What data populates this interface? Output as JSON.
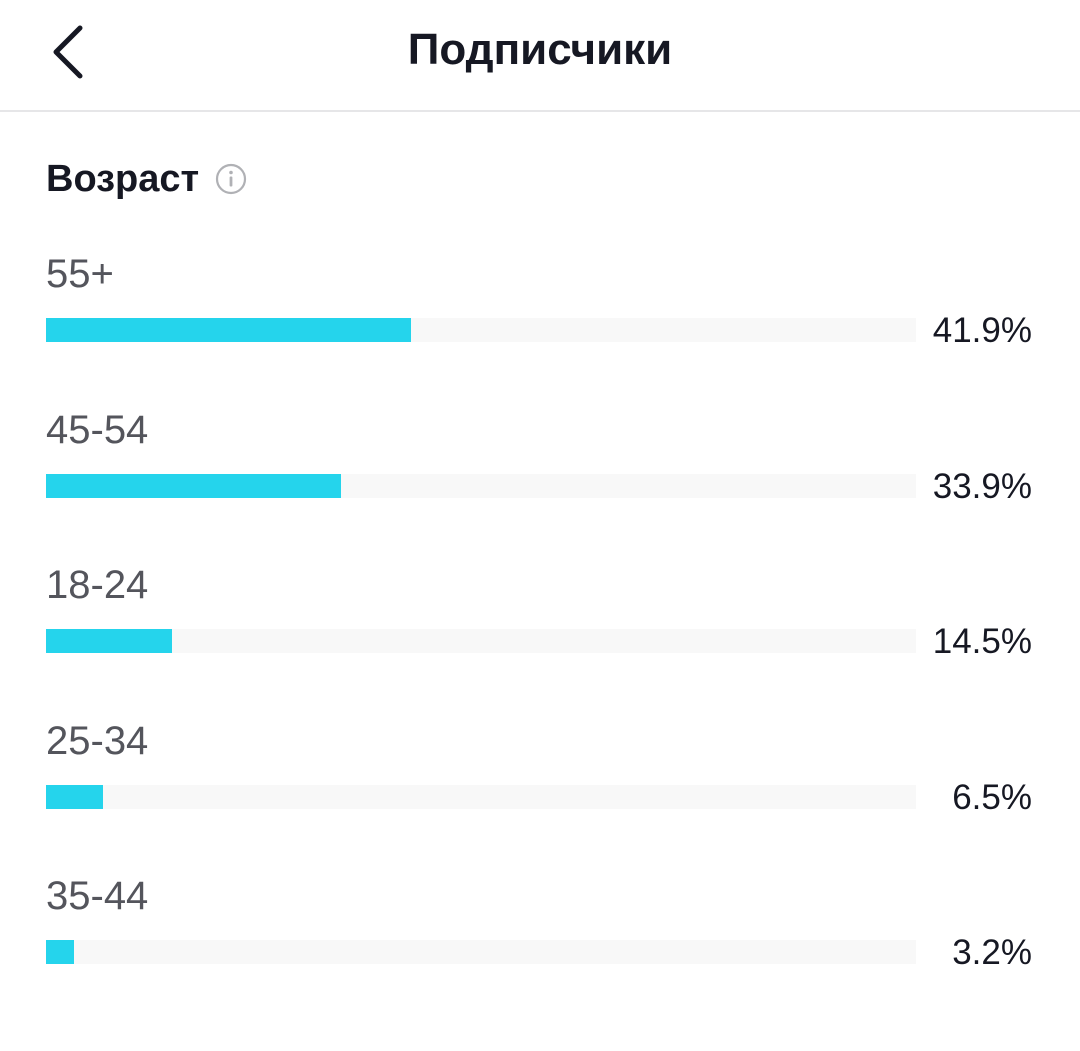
{
  "header": {
    "title": "Подписчики",
    "back_icon": "chevron-left-icon"
  },
  "section": {
    "title": "Возраст",
    "info_icon": "info-icon"
  },
  "accent_color": "#25d4ec",
  "track_color": "#f8f8f8",
  "age_groups": [
    {
      "label": "55+",
      "percent_text": "41.9%",
      "value": 41.9
    },
    {
      "label": "45-54",
      "percent_text": "33.9%",
      "value": 33.9
    },
    {
      "label": "18-24",
      "percent_text": "14.5%",
      "value": 14.5
    },
    {
      "label": "25-34",
      "percent_text": "6.5%",
      "value": 6.5
    },
    {
      "label": "35-44",
      "percent_text": "3.2%",
      "value": 3.2
    }
  ]
}
